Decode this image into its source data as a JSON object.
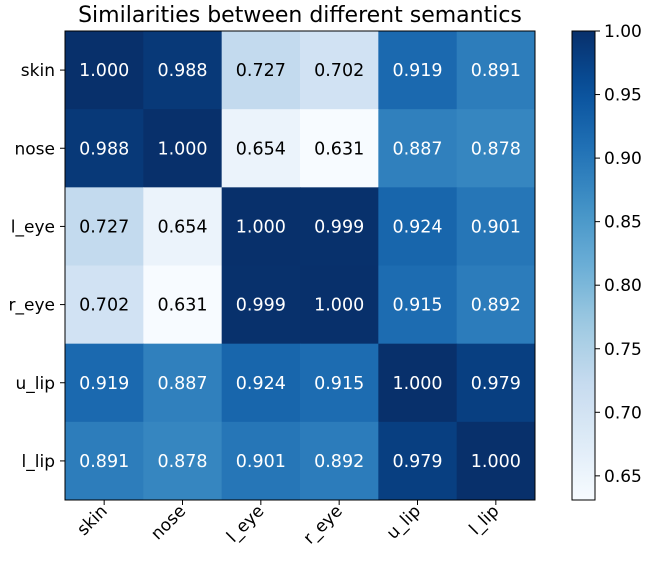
{
  "chart_data": {
    "type": "heatmap",
    "title": "Similarities between different semantics",
    "row_labels": [
      "skin",
      "nose",
      "l_eye",
      "r_eye",
      "u_lip",
      "l_lip"
    ],
    "col_labels": [
      "skin",
      "nose",
      "l_eye",
      "r_eye",
      "u_lip",
      "l_lip"
    ],
    "values": [
      [
        1.0,
        0.988,
        0.727,
        0.702,
        0.919,
        0.891
      ],
      [
        0.988,
        1.0,
        0.654,
        0.631,
        0.887,
        0.878
      ],
      [
        0.727,
        0.654,
        1.0,
        0.999,
        0.924,
        0.901
      ],
      [
        0.702,
        0.631,
        0.999,
        1.0,
        0.915,
        0.892
      ],
      [
        0.919,
        0.887,
        0.924,
        0.915,
        1.0,
        0.979
      ],
      [
        0.891,
        0.878,
        0.901,
        0.892,
        0.979,
        1.0
      ]
    ],
    "value_format": "0.000",
    "colormap": "Blues",
    "colorbar": {
      "min": 0.631,
      "max": 1.0,
      "ticks": [
        0.65,
        0.7,
        0.75,
        0.8,
        0.85,
        0.9,
        0.95,
        1.0
      ],
      "tick_labels": [
        "0.65",
        "0.70",
        "0.75",
        "0.80",
        "0.85",
        "0.90",
        "0.95",
        "1.00"
      ]
    },
    "xlabel": "",
    "ylabel": ""
  }
}
